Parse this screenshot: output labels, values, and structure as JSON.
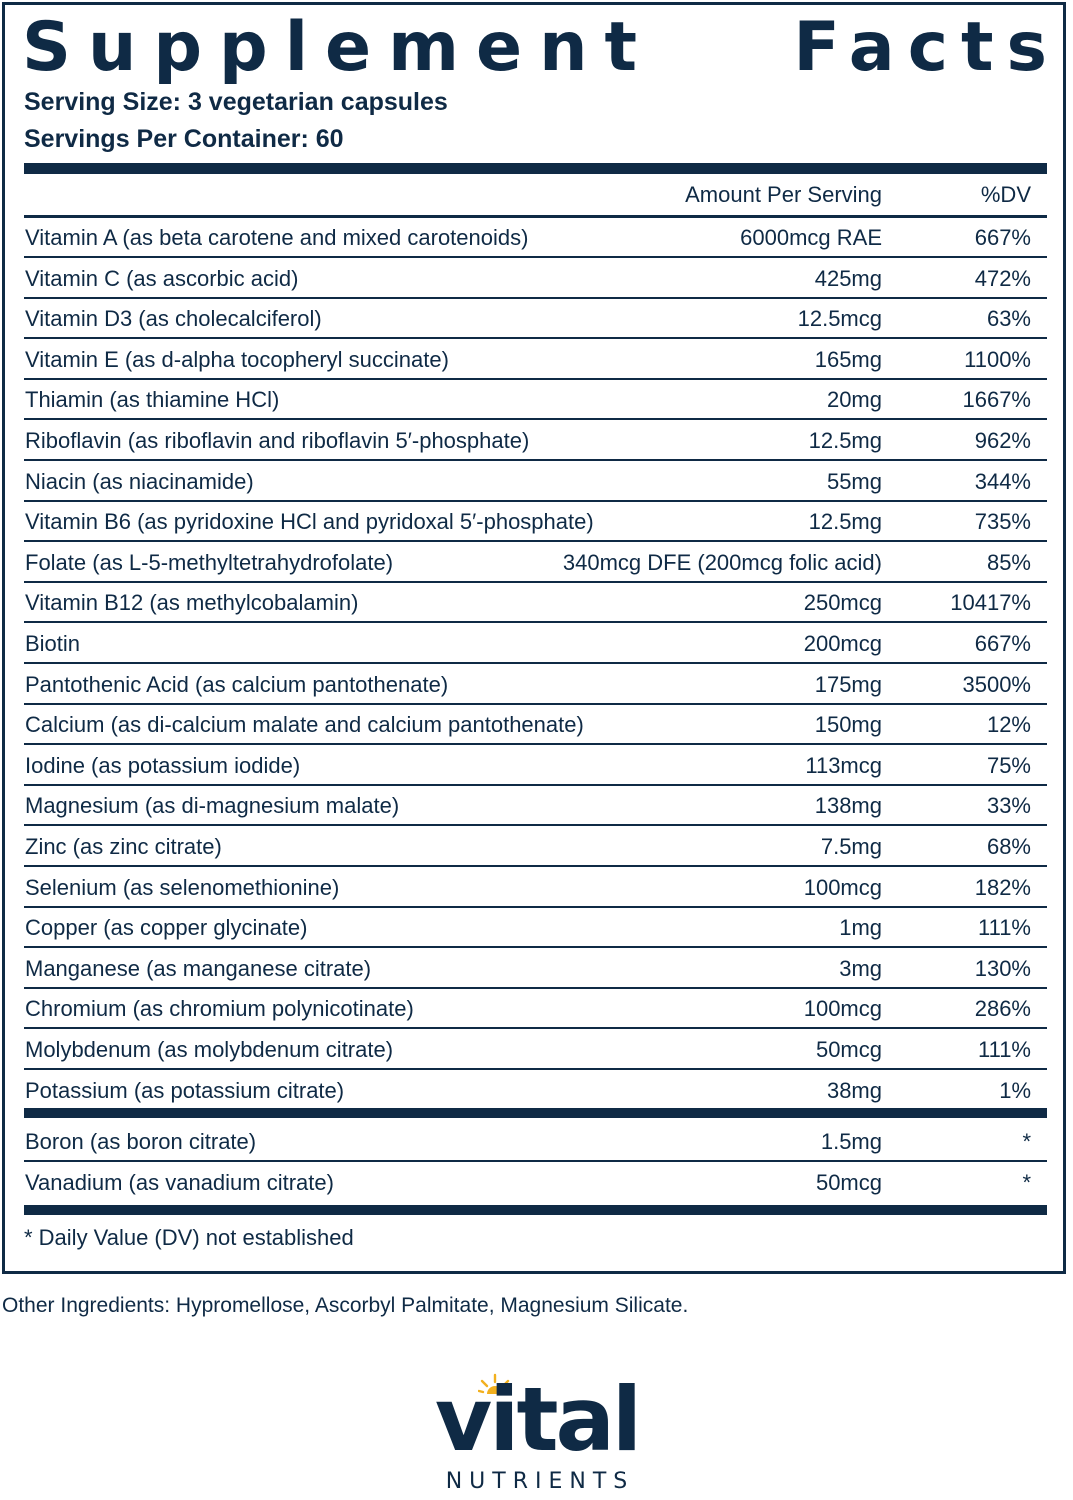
{
  "title": {
    "word1": "Supplement",
    "word2": "Facts"
  },
  "serving_size": "Serving Size: 3 vegetarian capsules",
  "servings_per_container": "Servings Per Container: 60",
  "header": {
    "amount": "Amount Per Serving",
    "dv": "%DV"
  },
  "nutrients": [
    {
      "name": "Vitamin A (as beta carotene and mixed carotenoids)",
      "amount": "6000mcg RAE",
      "dv": "667%"
    },
    {
      "name": "Vitamin C (as ascorbic acid)",
      "amount": "425mg",
      "dv": "472%"
    },
    {
      "name": "Vitamin D3 (as cholecalciferol)",
      "amount": "12.5mcg",
      "dv": "63%"
    },
    {
      "name": "Vitamin E (as d-alpha tocopheryl succinate)",
      "amount": "165mg",
      "dv": "1100%"
    },
    {
      "name": "Thiamin (as thiamine HCl)",
      "amount": "20mg",
      "dv": "1667%"
    },
    {
      "name": "Riboflavin (as riboflavin and riboflavin 5′-phosphate)",
      "amount": "12.5mg",
      "dv": "962%"
    },
    {
      "name": "Niacin (as niacinamide)",
      "amount": "55mg",
      "dv": "344%"
    },
    {
      "name": "Vitamin B6 (as pyridoxine HCl and pyridoxal 5′-phosphate)",
      "amount": "12.5mg",
      "dv": "735%"
    },
    {
      "name": "Folate (as L-5-methyltetrahydrofolate)",
      "amount": "340mcg DFE (200mcg folic acid)",
      "dv": "85%"
    },
    {
      "name": "Vitamin B12 (as methylcobalamin)",
      "amount": "250mcg",
      "dv": "10417%"
    },
    {
      "name": "Biotin",
      "amount": "200mcg",
      "dv": "667%"
    },
    {
      "name": "Pantothenic Acid (as calcium pantothenate)",
      "amount": "175mg",
      "dv": "3500%"
    },
    {
      "name": "Calcium (as di-calcium malate and calcium pantothenate)",
      "amount": "150mg",
      "dv": "12%"
    },
    {
      "name": "Iodine (as potassium iodide)",
      "amount": "113mcg",
      "dv": "75%"
    },
    {
      "name": "Magnesium (as di-magnesium malate)",
      "amount": "138mg",
      "dv": "33%"
    },
    {
      "name": "Zinc (as zinc citrate)",
      "amount": "7.5mg",
      "dv": "68%"
    },
    {
      "name": "Selenium (as selenomethionine)",
      "amount": "100mcg",
      "dv": "182%"
    },
    {
      "name": "Copper (as copper glycinate)",
      "amount": "1mg",
      "dv": "111%"
    },
    {
      "name": "Manganese (as manganese citrate)",
      "amount": "3mg",
      "dv": "130%"
    },
    {
      "name": "Chromium (as chromium polynicotinate)",
      "amount": "100mcg",
      "dv": "286%"
    },
    {
      "name": "Molybdenum (as molybdenum citrate)",
      "amount": "50mcg",
      "dv": "111%"
    },
    {
      "name": "Potassium (as potassium citrate)",
      "amount": "38mg",
      "dv": "1%"
    }
  ],
  "other_nutrients": [
    {
      "name": "Boron (as boron citrate)",
      "amount": "1.5mg",
      "dv": "*"
    },
    {
      "name": "Vanadium (as vanadium citrate)",
      "amount": "50mcg",
      "dv": "*"
    }
  ],
  "footnote": "* Daily Value (DV) not established",
  "other_ingredients": "Other Ingredients: Hypromellose, Ascorbyl Palmitate, Magnesium Silicate.",
  "logo": {
    "word": "vital",
    "sub": "NUTRIENTS"
  },
  "colors": {
    "navy": "#0f2a45",
    "sun": "#f2b01e"
  },
  "icons": [
    "sun-icon"
  ]
}
